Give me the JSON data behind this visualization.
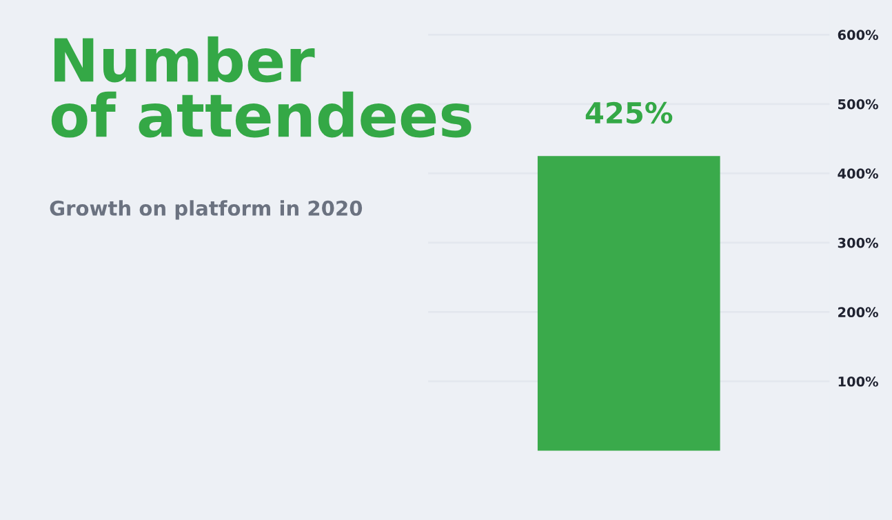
{
  "chart_data": {
    "type": "bar",
    "title": "Number\nof attendees",
    "subtitle": "Growth on platform in 2020",
    "categories": [
      null
    ],
    "values": [
      425
    ],
    "color": "#3aaa4b",
    "value_labels": [
      "425%"
    ],
    "ylim": [
      -100,
      650
    ],
    "yticks": [
      {
        "value": 100,
        "label": "100%"
      },
      {
        "value": 200,
        "label": "200%"
      },
      {
        "value": 300,
        "label": "300%"
      },
      {
        "value": 400,
        "label": "400%"
      },
      {
        "value": 500,
        "label": "500%"
      },
      {
        "value": 600,
        "label": "600%"
      }
    ],
    "grid": "y",
    "legend": false
  }
}
